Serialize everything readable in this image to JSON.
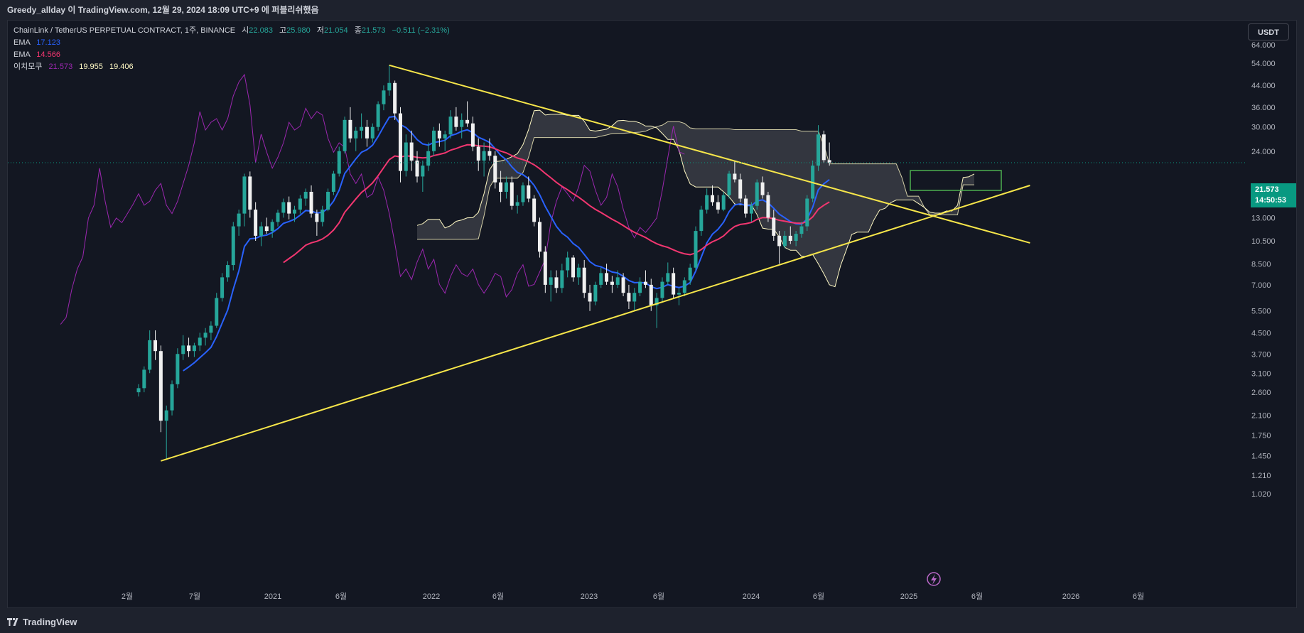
{
  "header": {
    "publish_note": "Greedy_allday 이 TradingView.com, 12월 29, 2024 18:09 UTC+9 에 퍼블리쉬했음"
  },
  "legend": {
    "symbol": "ChainLink / TetherUS PERPETUAL CONTRACT, 1주, BINANCE",
    "open_label": "시",
    "open_value": "22.083",
    "high_label": "고",
    "high_value": "25.980",
    "low_label": "저",
    "low_value": "21.054",
    "close_label": "종",
    "close_value": "21.573",
    "change": "−0.511 (−2.31%)",
    "ema1_label": "EMA",
    "ema1_value": "17.123",
    "ema2_label": "EMA",
    "ema2_value": "14.566",
    "ichimoku_label": "이치모쿠",
    "ichimoku_v1": "21.573",
    "ichimoku_v2": "19.955",
    "ichimoku_v3": "19.406"
  },
  "currency": "USDT",
  "last_price": {
    "price": "21.573",
    "countdown": "14:50:53"
  },
  "footer": {
    "brand": "TradingView"
  },
  "colors": {
    "up": "#26a69a",
    "down": "#f0f0f0",
    "ema_fast": "#2962ff",
    "ema_slow": "#f23670",
    "lagging": "#9c27b0",
    "cloud_line": "#fff9c4",
    "trendline": "#f7e64a",
    "box": "#4caf50"
  },
  "icons": {
    "flash": "lightning-icon",
    "logo": "tradingview-logo-icon"
  },
  "chart_data": {
    "type": "candlestick",
    "scale": "log",
    "y_ticks": [
      "64.000",
      "54.000",
      "44.000",
      "36.000",
      "30.000",
      "24.000",
      "16.000",
      "13.000",
      "10.500",
      "8.500",
      "7.000",
      "5.500",
      "4.500",
      "3.700",
      "3.100",
      "2.600",
      "2.100",
      "1.750",
      "1.450",
      "1.210",
      "1.020"
    ],
    "x_ticks": [
      "2월",
      "7월",
      "2021",
      "6월",
      "2022",
      "6월",
      "2023",
      "6월",
      "2024",
      "6월",
      "2025",
      "6월",
      "2026",
      "6월"
    ],
    "candles": [
      [
        0,
        2.6,
        2.8,
        2.5,
        2.7
      ],
      [
        1,
        2.7,
        3.3,
        2.6,
        3.2
      ],
      [
        2,
        3.2,
        4.6,
        3.1,
        4.2
      ],
      [
        3,
        4.2,
        4.6,
        3.5,
        3.8
      ],
      [
        4,
        3.8,
        4.0,
        1.8,
        2.0
      ],
      [
        5,
        2.0,
        2.3,
        1.4,
        2.2
      ],
      [
        6,
        2.2,
        2.9,
        2.1,
        2.8
      ],
      [
        7,
        2.8,
        3.9,
        2.7,
        3.7
      ],
      [
        8,
        3.7,
        4.4,
        3.5,
        4.0
      ],
      [
        9,
        4.0,
        4.3,
        3.6,
        3.8
      ],
      [
        10,
        3.8,
        4.1,
        3.6,
        4.0
      ],
      [
        11,
        4.0,
        4.5,
        3.8,
        4.3
      ],
      [
        12,
        4.3,
        4.7,
        4.0,
        4.5
      ],
      [
        13,
        4.5,
        5.0,
        4.2,
        4.8
      ],
      [
        14,
        4.8,
        6.5,
        4.7,
        6.2
      ],
      [
        15,
        6.2,
        7.8,
        6.0,
        7.5
      ],
      [
        16,
        7.5,
        8.7,
        7.2,
        8.4
      ],
      [
        17,
        8.4,
        12.5,
        8.0,
        12.0
      ],
      [
        18,
        12.0,
        14.0,
        11.0,
        13.5
      ],
      [
        19,
        13.5,
        19.5,
        12.0,
        19.0
      ],
      [
        20,
        19.0,
        19.9,
        13.0,
        14.0
      ],
      [
        21,
        14.0,
        15.0,
        10.5,
        11.0
      ],
      [
        22,
        11.0,
        12.5,
        10.0,
        12.0
      ],
      [
        23,
        12.0,
        13.0,
        11.2,
        11.5
      ],
      [
        24,
        11.5,
        12.8,
        10.8,
        12.5
      ],
      [
        25,
        12.5,
        14.0,
        12.0,
        13.6
      ],
      [
        26,
        13.6,
        15.5,
        13.0,
        15.0
      ],
      [
        27,
        15.0,
        15.8,
        12.8,
        13.5
      ],
      [
        28,
        13.5,
        14.5,
        12.5,
        14.0
      ],
      [
        29,
        14.0,
        16.0,
        13.5,
        15.5
      ],
      [
        30,
        15.5,
        17.0,
        14.5,
        16.5
      ],
      [
        31,
        16.5,
        17.5,
        13.0,
        13.5
      ],
      [
        32,
        13.5,
        14.0,
        11.0,
        12.5
      ],
      [
        33,
        12.5,
        14.5,
        12.0,
        14.0
      ],
      [
        34,
        14.0,
        17.0,
        13.8,
        16.5
      ],
      [
        35,
        16.5,
        20.0,
        16.0,
        19.5
      ],
      [
        36,
        19.5,
        25.0,
        19.0,
        24.0
      ],
      [
        37,
        24.0,
        33.0,
        23.5,
        32.0
      ],
      [
        38,
        32.0,
        36.0,
        26.0,
        27.0
      ],
      [
        39,
        27.0,
        30.0,
        24.0,
        29.0
      ],
      [
        40,
        29.0,
        34.0,
        27.0,
        30.0
      ],
      [
        41,
        30.0,
        32.0,
        25.0,
        27.0
      ],
      [
        42,
        27.0,
        31.0,
        26.0,
        30.0
      ],
      [
        43,
        30.0,
        38.0,
        29.0,
        37.0
      ],
      [
        44,
        37.0,
        44.0,
        35.0,
        42.0
      ],
      [
        45,
        42.0,
        53.0,
        40.0,
        45.0
      ],
      [
        46,
        45.0,
        46.0,
        32.0,
        34.0
      ],
      [
        47,
        34.0,
        36.0,
        18.0,
        20.0
      ],
      [
        48,
        20.0,
        28.0,
        19.0,
        26.0
      ],
      [
        49,
        26.0,
        29.0,
        20.0,
        22.0
      ],
      [
        50,
        22.0,
        24.0,
        18.0,
        19.0
      ],
      [
        51,
        19.0,
        22.0,
        16.5,
        21.0
      ],
      [
        52,
        21.0,
        26.0,
        20.0,
        24.0
      ],
      [
        53,
        24.0,
        30.0,
        23.0,
        29.0
      ],
      [
        54,
        29.0,
        31.0,
        25.0,
        27.0
      ],
      [
        55,
        27.0,
        29.0,
        24.0,
        28.0
      ],
      [
        56,
        28.0,
        35.0,
        27.0,
        33.0
      ],
      [
        57,
        33.0,
        36.0,
        29.0,
        30.0
      ],
      [
        58,
        30.0,
        34.0,
        27.0,
        32.0
      ],
      [
        59,
        32.0,
        38.0,
        30.0,
        31.0
      ],
      [
        60,
        31.0,
        33.0,
        24.0,
        25.0
      ],
      [
        61,
        25.0,
        27.0,
        20.0,
        22.0
      ],
      [
        62,
        22.0,
        26.0,
        19.0,
        24.0
      ],
      [
        63,
        24.0,
        27.0,
        22.0,
        23.0
      ],
      [
        64,
        23.0,
        24.0,
        17.0,
        18.0
      ],
      [
        65,
        18.0,
        20.0,
        15.0,
        16.5
      ],
      [
        66,
        16.5,
        19.0,
        15.5,
        18.0
      ],
      [
        67,
        18.0,
        19.0,
        14.0,
        14.5
      ],
      [
        68,
        14.5,
        16.0,
        13.5,
        15.0
      ],
      [
        69,
        15.0,
        18.0,
        14.5,
        17.5
      ],
      [
        70,
        17.5,
        19.0,
        15.0,
        15.5
      ],
      [
        71,
        15.5,
        16.0,
        12.0,
        12.5
      ],
      [
        72,
        12.5,
        13.0,
        9.0,
        9.5
      ],
      [
        73,
        9.5,
        10.0,
        6.5,
        7.0
      ],
      [
        74,
        7.0,
        8.0,
        6.0,
        7.5
      ],
      [
        75,
        7.5,
        8.0,
        6.5,
        6.8
      ],
      [
        76,
        6.8,
        8.5,
        6.5,
        8.0
      ],
      [
        77,
        8.0,
        9.5,
        7.5,
        9.0
      ],
      [
        78,
        9.0,
        9.2,
        7.2,
        7.5
      ],
      [
        79,
        7.5,
        8.5,
        7.0,
        8.2
      ],
      [
        80,
        8.2,
        8.8,
        6.2,
        6.5
      ],
      [
        81,
        6.5,
        7.0,
        5.5,
        6.0
      ],
      [
        82,
        6.0,
        7.2,
        5.8,
        7.0
      ],
      [
        83,
        7.0,
        8.2,
        6.8,
        7.8
      ],
      [
        84,
        7.8,
        8.5,
        7.0,
        7.2
      ],
      [
        85,
        7.2,
        7.6,
        6.5,
        7.0
      ],
      [
        86,
        7.0,
        8.0,
        6.8,
        7.5
      ],
      [
        87,
        7.5,
        7.8,
        6.3,
        6.5
      ],
      [
        88,
        6.5,
        7.0,
        5.6,
        6.0
      ],
      [
        89,
        6.0,
        6.8,
        5.5,
        6.5
      ],
      [
        90,
        6.5,
        7.5,
        6.3,
        7.2
      ],
      [
        91,
        7.2,
        8.0,
        6.8,
        7.0
      ],
      [
        92,
        7.0,
        7.4,
        5.5,
        5.8
      ],
      [
        93,
        5.8,
        6.5,
        4.7,
        6.2
      ],
      [
        94,
        6.2,
        7.5,
        6.0,
        7.2
      ],
      [
        95,
        7.2,
        8.6,
        7.0,
        7.8
      ],
      [
        96,
        7.8,
        8.2,
        6.2,
        6.4
      ],
      [
        97,
        6.4,
        6.8,
        5.8,
        6.5
      ],
      [
        98,
        6.5,
        7.5,
        6.3,
        7.3
      ],
      [
        99,
        7.3,
        8.5,
        7.0,
        8.2
      ],
      [
        100,
        8.2,
        12.0,
        8.0,
        11.5
      ],
      [
        101,
        11.5,
        14.5,
        11.0,
        14.0
      ],
      [
        102,
        14.0,
        17.0,
        13.5,
        16.0
      ],
      [
        103,
        16.0,
        17.5,
        14.5,
        15.0
      ],
      [
        104,
        15.0,
        16.0,
        13.5,
        14.0
      ],
      [
        105,
        14.0,
        16.5,
        13.8,
        16.0
      ],
      [
        106,
        16.0,
        20.0,
        15.5,
        19.5
      ],
      [
        107,
        19.5,
        22.0,
        18.0,
        18.5
      ],
      [
        108,
        18.5,
        19.5,
        15.0,
        15.5
      ],
      [
        109,
        15.5,
        16.0,
        13.0,
        13.5
      ],
      [
        110,
        13.5,
        15.0,
        12.5,
        14.5
      ],
      [
        111,
        14.5,
        18.5,
        14.0,
        18.0
      ],
      [
        112,
        18.0,
        19.0,
        15.5,
        16.0
      ],
      [
        113,
        16.0,
        16.5,
        12.5,
        13.0
      ],
      [
        114,
        13.0,
        14.0,
        10.5,
        11.0
      ],
      [
        115,
        11.0,
        11.5,
        8.5,
        10.0
      ],
      [
        116,
        10.0,
        11.5,
        9.8,
        11.0
      ],
      [
        117,
        11.0,
        12.0,
        10.2,
        10.5
      ],
      [
        118,
        10.5,
        11.5,
        10.0,
        11.2
      ],
      [
        119,
        11.2,
        12.5,
        10.8,
        12.0
      ],
      [
        120,
        12.0,
        16.0,
        11.5,
        15.5
      ],
      [
        121,
        15.5,
        22.0,
        15.0,
        21.0
      ],
      [
        122,
        21.0,
        30.5,
        20.0,
        28.0
      ],
      [
        123,
        28.0,
        29.0,
        21.5,
        22.1
      ],
      [
        124,
        22.1,
        26.0,
        21.0,
        21.6
      ]
    ],
    "ema_fast_value": 17.123,
    "ema_slow_value": 14.566,
    "trendlines": [
      {
        "name": "descending-resistance",
        "from": [
          45,
          53.0
        ],
        "to": [
          160,
          10.3
        ]
      },
      {
        "name": "ascending-support",
        "from": [
          4,
          1.38
        ],
        "to": [
          160,
          17.5
        ]
      }
    ]
  }
}
